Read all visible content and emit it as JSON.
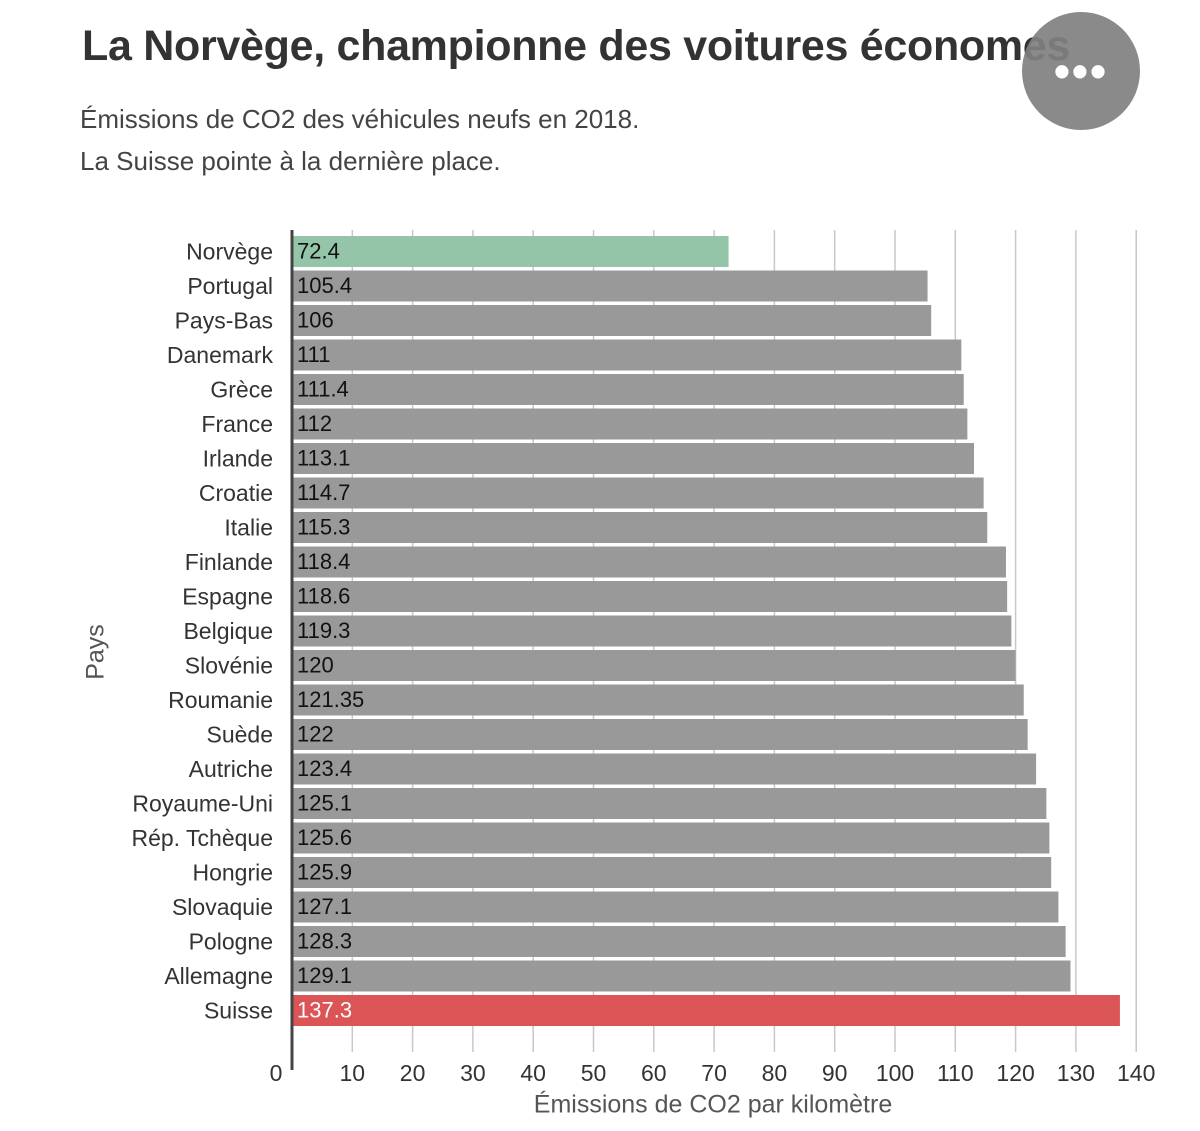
{
  "header": {
    "title": "La Norvège, championne des voitures économes",
    "subtitle_line1": "Émissions de CO2 des véhicules neufs en 2018.",
    "subtitle_line2": "La Suisse pointe à la dernière place."
  },
  "menu": {
    "icon": "more-horizontal-icon",
    "glyph": "•••"
  },
  "colors": {
    "default_bar": "#999999",
    "highlight_low": "#94c5a9",
    "highlight_high": "#db5456",
    "grid": "#c8c8c8",
    "axis": "#444444"
  },
  "chart_data": {
    "type": "bar",
    "orientation": "horizontal",
    "title": "La Norvège, championne des voitures économes",
    "xlabel": "Émissions de CO2 par kilomètre",
    "ylabel": "Pays",
    "xlim": [
      0,
      140
    ],
    "xticks": [
      0,
      10,
      20,
      30,
      40,
      50,
      60,
      70,
      80,
      90,
      100,
      110,
      120,
      130,
      140
    ],
    "grid": true,
    "legend": "none",
    "categories": [
      "Norvège",
      "Portugal",
      "Pays-Bas",
      "Danemark",
      "Grèce",
      "France",
      "Irlande",
      "Croatie",
      "Italie",
      "Finlande",
      "Espagne",
      "Belgique",
      "Slovénie",
      "Roumanie",
      "Suède",
      "Autriche",
      "Royaume-Uni",
      "Rép. Tchèque",
      "Hongrie",
      "Slovaquie",
      "Pologne",
      "Allemagne",
      "Suisse"
    ],
    "values": [
      72.4,
      105.4,
      106,
      111,
      111.4,
      112,
      113.1,
      114.7,
      115.3,
      118.4,
      118.6,
      119.3,
      120,
      121.35,
      122,
      123.4,
      125.1,
      125.6,
      125.9,
      127.1,
      128.3,
      129.1,
      137.3
    ],
    "value_labels": [
      "72.4",
      "105.4",
      "106",
      "111",
      "111.4",
      "112",
      "113.1",
      "114.7",
      "115.3",
      "118.4",
      "118.6",
      "119.3",
      "120",
      "121.35",
      "122",
      "123.4",
      "125.1",
      "125.6",
      "125.9",
      "127.1",
      "128.3",
      "129.1",
      "137.3"
    ],
    "highlight": {
      "Norvège": "low",
      "Suisse": "high"
    }
  }
}
